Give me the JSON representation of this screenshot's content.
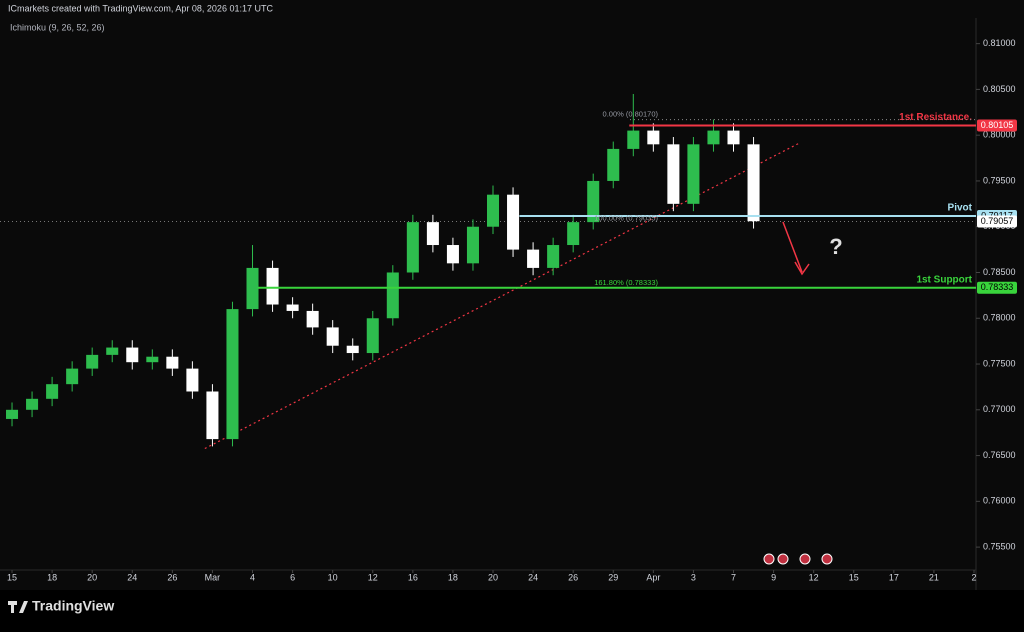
{
  "header": {
    "attribution": "ICmarkets created with TradingView.com, Apr 08, 2026 01:17 UTC",
    "indicator": "Ichimoku (9, 26, 52, 26)"
  },
  "chart_data": {
    "type": "candlestick",
    "x": [
      0,
      0.5,
      1,
      1.5,
      2,
      2.5,
      3,
      3.5,
      4,
      4.5,
      5,
      5.5,
      6,
      6.5,
      7,
      7.5,
      8,
      8.5,
      9,
      9.5,
      10,
      10.5,
      11,
      11.5,
      12,
      12.5,
      13,
      13.5,
      14,
      14.5,
      15,
      15.5,
      16,
      16.5,
      17,
      17.5,
      18,
      18.5
    ],
    "open": [
      0.769,
      0.77,
      0.7712,
      0.7728,
      0.7745,
      0.776,
      0.7768,
      0.7752,
      0.7758,
      0.7745,
      0.772,
      0.7668,
      0.781,
      0.7855,
      0.7815,
      0.7808,
      0.779,
      0.777,
      0.7762,
      0.78,
      0.785,
      0.7905,
      0.788,
      0.786,
      0.79,
      0.7935,
      0.7875,
      0.7855,
      0.788,
      0.7905,
      0.795,
      0.7985,
      0.8005,
      0.799,
      0.7925,
      0.799,
      0.8005,
      0.799
    ],
    "high": [
      0.7708,
      0.772,
      0.7736,
      0.7753,
      0.7768,
      0.7776,
      0.7776,
      0.7766,
      0.7766,
      0.7753,
      0.7728,
      0.7818,
      0.788,
      0.7863,
      0.7823,
      0.7816,
      0.7798,
      0.7778,
      0.7808,
      0.7858,
      0.7913,
      0.7913,
      0.7888,
      0.7908,
      0.7945,
      0.7943,
      0.7883,
      0.7888,
      0.7913,
      0.7958,
      0.7993,
      0.8045,
      0.8013,
      0.7998,
      0.7998,
      0.8017,
      0.8013,
      0.7998
    ],
    "low": [
      0.7682,
      0.7692,
      0.7704,
      0.772,
      0.7737,
      0.7752,
      0.7744,
      0.7744,
      0.7737,
      0.7712,
      0.766,
      0.766,
      0.7802,
      0.7807,
      0.78,
      0.7782,
      0.7762,
      0.7754,
      0.7754,
      0.7792,
      0.7842,
      0.7872,
      0.7852,
      0.7852,
      0.7892,
      0.7867,
      0.7847,
      0.7847,
      0.7872,
      0.7897,
      0.7942,
      0.7977,
      0.7982,
      0.7917,
      0.7917,
      0.7982,
      0.7982,
      0.7898
    ],
    "close": [
      0.77,
      0.7712,
      0.7728,
      0.7745,
      0.776,
      0.7768,
      0.7752,
      0.7758,
      0.7745,
      0.772,
      0.7668,
      0.781,
      0.7855,
      0.7815,
      0.7808,
      0.779,
      0.777,
      0.7762,
      0.78,
      0.785,
      0.7905,
      0.788,
      0.786,
      0.79,
      0.7935,
      0.7875,
      0.7855,
      0.788,
      0.7905,
      0.795,
      0.7985,
      0.8005,
      0.799,
      0.7925,
      0.799,
      0.8005,
      0.799,
      0.7906
    ],
    "up_color": "#2ebd4e",
    "down_color": "#ffffff",
    "xlim": [
      -0.3,
      24.05
    ],
    "xticks": [
      {
        "value": 0,
        "label": "15"
      },
      {
        "value": 1,
        "label": "18"
      },
      {
        "value": 2,
        "label": "20"
      },
      {
        "value": 3,
        "label": "24"
      },
      {
        "value": 4,
        "label": "26"
      },
      {
        "value": 5,
        "label": "Mar"
      },
      {
        "value": 6,
        "label": "4"
      },
      {
        "value": 7,
        "label": "6"
      },
      {
        "value": 8,
        "label": "10"
      },
      {
        "value": 9,
        "label": "12"
      },
      {
        "value": 10,
        "label": "16"
      },
      {
        "value": 11,
        "label": "18"
      },
      {
        "value": 12,
        "label": "20"
      },
      {
        "value": 13,
        "label": "24"
      },
      {
        "value": 14,
        "label": "26"
      },
      {
        "value": 15,
        "label": "29"
      },
      {
        "value": 16,
        "label": "Apr"
      },
      {
        "value": 17,
        "label": "3"
      },
      {
        "value": 18,
        "label": "7"
      },
      {
        "value": 19,
        "label": "9"
      },
      {
        "value": 20,
        "label": "12"
      },
      {
        "value": 21,
        "label": "15"
      },
      {
        "value": 22,
        "label": "17"
      },
      {
        "value": 23,
        "label": "21"
      },
      {
        "value": 24,
        "label": "2"
      }
    ],
    "ylim": [
      0.7525,
      0.8128
    ],
    "yticks": [
      {
        "value": 0.81,
        "label": "0.81000"
      },
      {
        "value": 0.805,
        "label": "0.80500"
      },
      {
        "value": 0.8,
        "label": "0.80000"
      },
      {
        "value": 0.795,
        "label": "0.79500"
      },
      {
        "value": 0.79,
        "label": "0.79000"
      },
      {
        "value": 0.785,
        "label": "0.78500"
      },
      {
        "value": 0.78,
        "label": "0.78000"
      },
      {
        "value": 0.775,
        "label": "0.77500"
      },
      {
        "value": 0.77,
        "label": "0.77000"
      },
      {
        "value": 0.765,
        "label": "0.76500"
      },
      {
        "value": 0.76,
        "label": "0.76000"
      },
      {
        "value": 0.755,
        "label": "0.75500"
      }
    ],
    "levels": [
      {
        "name": "1st Resistance.",
        "value": 0.80105,
        "color": "#f23645",
        "x_start": 15.4
      },
      {
        "name": "Pivot",
        "value": 0.79117,
        "color": "#a8e0f0",
        "x_start": 12.66
      },
      {
        "name": "1st Support",
        "value": 0.78333,
        "color": "#39d43c",
        "x_start": 6.13
      }
    ],
    "last_price": 0.79057,
    "fib_labels": [
      {
        "text": "0.00% (0.80170)",
        "value": 0.8017
      },
      {
        "text": "100.00% (0.79035)",
        "value": 0.79035
      },
      {
        "text": "161.80% (0.78333)",
        "value": 0.78333
      }
    ],
    "trendline": {
      "x": [
        4.81,
        19.64
      ],
      "values": [
        0.76577,
        0.79913
      ]
    },
    "annotation": "?"
  },
  "footer": {
    "brand": "TradingView"
  }
}
